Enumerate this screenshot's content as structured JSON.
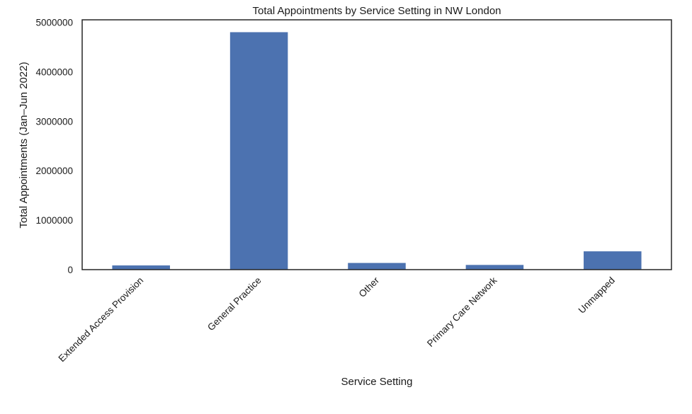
{
  "chart_data": {
    "type": "bar",
    "title": "Total Appointments by Service Setting in NW London",
    "xlabel": "Service Setting",
    "ylabel": "Total Appointments (Jan–Jun 2022)",
    "categories": [
      "Extended Access Provision",
      "General Practice",
      "Other",
      "Primary Care Network",
      "Unmapped"
    ],
    "values": [
      85000,
      4800000,
      135000,
      95000,
      370000
    ],
    "ylim": [
      0,
      5050000
    ],
    "yticks": [
      0,
      1000000,
      2000000,
      3000000,
      4000000,
      5000000
    ],
    "ytick_labels": [
      "0",
      "1000000",
      "2000000",
      "3000000",
      "4000000",
      "5000000"
    ],
    "grid": false,
    "legend": false,
    "colors": {
      "bar": "#4c72b0",
      "axis": "#262626"
    }
  }
}
